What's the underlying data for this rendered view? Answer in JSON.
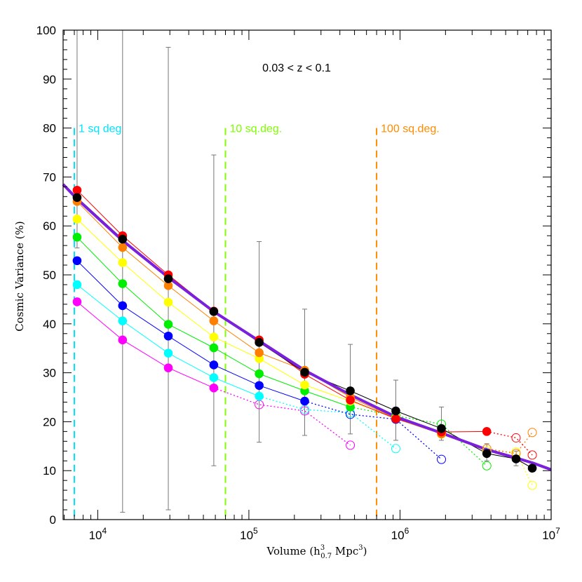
{
  "chart_data": {
    "type": "scatter",
    "title": "",
    "annotation": "0.03 < z < 0.1",
    "xlabel": "Volume (h³₀.₇ Mpc³)",
    "xlabel_parts": {
      "pre": "Volume (h",
      "sup": "3",
      "sub": "0.7",
      "post": " Mpc",
      "sup2": "3",
      "close": ")"
    },
    "ylabel": "Cosmic Variance (%)",
    "x_scale": "log",
    "xlim": [
      5900,
      10000000
    ],
    "ylim": [
      0,
      100
    ],
    "y_ticks": [
      0,
      10,
      20,
      30,
      40,
      50,
      60,
      70,
      80,
      90,
      100
    ],
    "x_major_ticks": [
      {
        "value": 10000,
        "base": "10",
        "exp": "4"
      },
      {
        "value": 100000,
        "base": "10",
        "exp": "5"
      },
      {
        "value": 1000000,
        "base": "10",
        "exp": "6"
      },
      {
        "value": 10000000,
        "base": "10",
        "exp": "7"
      }
    ],
    "grid": false,
    "legend": "none",
    "area_lines": [
      {
        "label": "1 sq deg",
        "x": 7000,
        "y_top": 80,
        "color": "#00e5ff"
      },
      {
        "label": "10 sq.deg.",
        "x": 70000,
        "y_top": 80,
        "color": "#7fff00"
      },
      {
        "label": "100 sq.deg.",
        "x": 700000,
        "y_top": 80,
        "color": "#ff8c00"
      }
    ],
    "fit_curve": {
      "color": "#7a1fdc",
      "x": [
        5900,
        7300,
        14600,
        29300,
        58600,
        117000,
        234000,
        469000,
        938000,
        1880000,
        3750000,
        5860000,
        7500000,
        10000000
      ],
      "y": [
        68.5,
        65.5,
        57,
        49.5,
        42.5,
        36.5,
        30.5,
        25.5,
        21,
        17.7,
        14.3,
        12.6,
        11.6,
        10.2
      ]
    },
    "black_errorbars": [
      {
        "x": 7300,
        "y": 65.8,
        "low": 55.5,
        "high": 100
      },
      {
        "x": 14600,
        "y": 57.3,
        "low": 1.5,
        "high": 100
      },
      {
        "x": 29300,
        "y": 49.2,
        "low": 2,
        "high": 96.5
      },
      {
        "x": 58600,
        "y": 42.5,
        "low": 11,
        "high": 74.5
      },
      {
        "x": 117000,
        "y": 36.2,
        "low": 15.8,
        "high": 56.8
      },
      {
        "x": 234000,
        "y": 30.1,
        "low": 17.2,
        "high": 43
      },
      {
        "x": 469000,
        "y": 26.3,
        "low": 17.5,
        "high": 35.8
      },
      {
        "x": 938000,
        "y": 22.2,
        "low": 16.2,
        "high": 28.5
      },
      {
        "x": 1880000,
        "y": 18.6,
        "low": 16.2,
        "high": 23
      },
      {
        "x": 3750000,
        "y": 13.5,
        "low": 12,
        "high": 15.5
      },
      {
        "x": 5860000,
        "y": 12.4,
        "low": 11,
        "high": 14
      },
      {
        "x": 7500000,
        "y": 10.5,
        "low": 9.8,
        "high": 11.2
      }
    ],
    "series": [
      {
        "color": "#ff00ff",
        "solid": [
          [
            7300,
            44.5
          ],
          [
            14600,
            36.7
          ],
          [
            29300,
            31.0
          ],
          [
            58600,
            26.9
          ]
        ],
        "open": [
          [
            117000,
            23.5
          ],
          [
            234000,
            22.2
          ],
          [
            469000,
            15.2
          ]
        ]
      },
      {
        "color": "#00ffff",
        "solid": [
          [
            7300,
            48.0
          ],
          [
            14600,
            40.6
          ],
          [
            29300,
            34.0
          ],
          [
            58600,
            29.0
          ],
          [
            117000,
            25.2
          ]
        ],
        "open": [
          [
            234000,
            22.5
          ],
          [
            469000,
            21.8
          ],
          [
            938000,
            14.5
          ]
        ]
      },
      {
        "color": "#0000ff",
        "solid": [
          [
            7300,
            52.9
          ],
          [
            14600,
            43.7
          ],
          [
            29300,
            37.5
          ],
          [
            58600,
            31.6
          ],
          [
            117000,
            27.4
          ],
          [
            234000,
            24.2
          ]
        ],
        "open": [
          [
            469000,
            21.5
          ],
          [
            938000,
            20.5
          ],
          [
            1880000,
            12.3
          ]
        ]
      },
      {
        "color": "#00ee00",
        "solid": [
          [
            7300,
            57.7
          ],
          [
            14600,
            48.2
          ],
          [
            29300,
            39.9
          ],
          [
            58600,
            35.1
          ],
          [
            117000,
            29.8
          ],
          [
            234000,
            26.3
          ],
          [
            469000,
            23.0
          ]
        ],
        "open": [
          [
            938000,
            21.2
          ],
          [
            1880000,
            19.5
          ],
          [
            3750000,
            11.0
          ]
        ]
      },
      {
        "color": "#ffff00",
        "solid": [
          [
            7300,
            61.4
          ],
          [
            14600,
            52.5
          ],
          [
            29300,
            44.4
          ],
          [
            58600,
            37.3
          ],
          [
            117000,
            32.9
          ],
          [
            234000,
            27.5
          ],
          [
            469000,
            24.2
          ],
          [
            938000,
            20.8
          ]
        ],
        "open": [
          [
            1880000,
            17.5
          ],
          [
            3750000,
            14.0
          ],
          [
            5860000,
            13.8
          ],
          [
            7500000,
            7.0
          ]
        ]
      },
      {
        "color": "#ff7f00",
        "solid": [
          [
            7300,
            65.0
          ],
          [
            14600,
            55.6
          ],
          [
            29300,
            47.8
          ],
          [
            58600,
            40.6
          ],
          [
            117000,
            34.1
          ],
          [
            234000,
            30.5
          ],
          [
            469000,
            25.0
          ],
          [
            938000,
            20.6
          ],
          [
            1880000,
            17.5
          ]
        ],
        "open": [
          [
            3750000,
            14.5
          ],
          [
            5860000,
            13.5
          ],
          [
            7500000,
            17.8
          ]
        ]
      },
      {
        "color": "#ff0000",
        "solid": [
          [
            7300,
            67.3
          ],
          [
            14600,
            58.0
          ],
          [
            29300,
            50.0
          ],
          [
            58600,
            42.6
          ],
          [
            117000,
            36.7
          ],
          [
            234000,
            29.7
          ],
          [
            469000,
            24.4
          ],
          [
            938000,
            20.6
          ],
          [
            1880000,
            17.9
          ],
          [
            3750000,
            18.0
          ]
        ],
        "open": [
          [
            5860000,
            16.7
          ],
          [
            7500000,
            13.2
          ]
        ]
      },
      {
        "color": "#000000",
        "solid": [
          [
            7300,
            65.8
          ],
          [
            14600,
            57.3
          ],
          [
            29300,
            49.2
          ],
          [
            58600,
            42.5
          ],
          [
            117000,
            36.2
          ],
          [
            234000,
            30.1
          ],
          [
            469000,
            26.3
          ],
          [
            938000,
            22.2
          ],
          [
            1880000,
            18.6
          ],
          [
            3750000,
            13.5
          ],
          [
            5860000,
            12.4
          ],
          [
            7500000,
            10.5
          ]
        ],
        "open": []
      }
    ]
  }
}
